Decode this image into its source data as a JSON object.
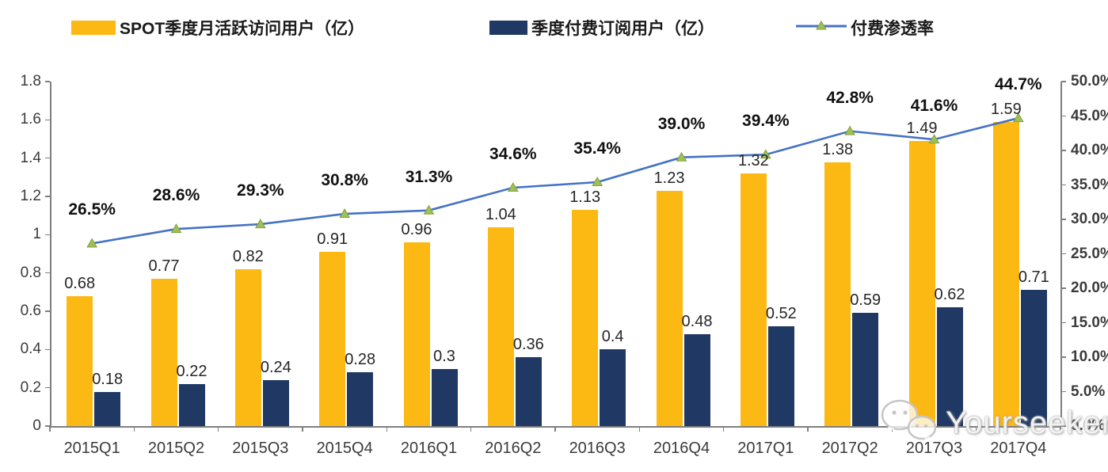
{
  "legend": [
    {
      "label": "SPOT季度月活跃访问用户（亿）",
      "color": "#FCB813",
      "type": "bar"
    },
    {
      "label": "季度付费订阅用户（亿）",
      "color": "#1F3864",
      "type": "bar"
    },
    {
      "label": "付费渗透率",
      "color": "#4472C4",
      "marker_color": "#A2BE57",
      "type": "line"
    }
  ],
  "chart_data": {
    "type": "combo-bar-line",
    "categories": [
      "2015Q1",
      "2015Q2",
      "2015Q3",
      "2015Q4",
      "2016Q1",
      "2016Q2",
      "2016Q3",
      "2016Q4",
      "2017Q1",
      "2017Q2",
      "2017Q3",
      "2017Q4"
    ],
    "series": [
      {
        "name": "SPOT季度月活跃访问用户（亿）",
        "type": "bar",
        "axis": "left",
        "color": "#FCB813",
        "values": [
          0.68,
          0.77,
          0.82,
          0.91,
          0.96,
          1.04,
          1.13,
          1.23,
          1.32,
          1.38,
          1.49,
          1.59
        ],
        "labels": [
          "0.68",
          "0.77",
          "0.82",
          "0.91",
          "0.96",
          "1.04",
          "1.13",
          "1.23",
          "1.32",
          "1.38",
          "1.49",
          "1.59"
        ]
      },
      {
        "name": "季度付费订阅用户（亿）",
        "type": "bar",
        "axis": "left",
        "color": "#1F3864",
        "values": [
          0.18,
          0.22,
          0.24,
          0.28,
          0.3,
          0.36,
          0.4,
          0.48,
          0.52,
          0.59,
          0.62,
          0.71
        ],
        "labels": [
          "0.18",
          "0.22",
          "0.24",
          "0.28",
          "0.3",
          "0.36",
          "0.4",
          "0.48",
          "0.52",
          "0.59",
          "0.62",
          "0.71"
        ]
      },
      {
        "name": "付费渗透率",
        "type": "line",
        "axis": "right",
        "color": "#4472C4",
        "marker_color": "#A2BE57",
        "marker_edge": "#7FA33C",
        "values": [
          26.5,
          28.6,
          29.3,
          30.8,
          31.3,
          34.6,
          35.4,
          39.0,
          39.4,
          42.8,
          41.6,
          44.7
        ],
        "labels": [
          "26.5%",
          "28.6%",
          "29.3%",
          "30.8%",
          "31.3%",
          "34.6%",
          "35.4%",
          "39.0%",
          "39.4%",
          "42.8%",
          "41.6%",
          "44.7%"
        ]
      }
    ],
    "left_axis": {
      "min": 0,
      "max": 1.8,
      "ticks": [
        "0",
        "0.2",
        "0.4",
        "0.6",
        "0.8",
        "1",
        "1.2",
        "1.4",
        "1.6",
        "1.8"
      ]
    },
    "right_axis": {
      "min": 0,
      "max": 50,
      "ticks": [
        "0.0%",
        "5.0%",
        "10.0%",
        "15.0%",
        "20.0%",
        "25.0%",
        "30.0%",
        "35.0%",
        "40.0%",
        "45.0%",
        "50.0%"
      ]
    },
    "grid": false,
    "legend_position": "top"
  },
  "watermark": {
    "text": "Yourseeker",
    "icon": "wechat-icon"
  }
}
